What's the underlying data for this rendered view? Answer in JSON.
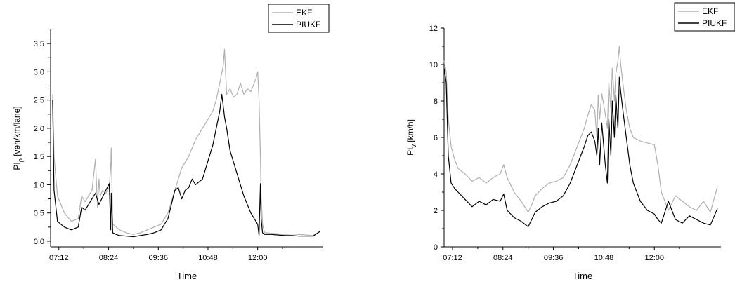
{
  "chart_data": [
    {
      "type": "line",
      "xlabel": "Time",
      "ylabel": "PI",
      "ylabel_sub": "ρ",
      "ylabel_unit": " [veh/km/lane]",
      "x_ticks": [
        "07:12",
        "08:24",
        "09:36",
        "10:48",
        "12:00"
      ],
      "xlim": [
        "07:00",
        "13:35"
      ],
      "ylim": [
        -0.1,
        3.75
      ],
      "y_ticks": [
        "0,0",
        "0,5",
        "1,0",
        "1,5",
        "2,0",
        "2,5",
        "3,0",
        "3,5"
      ],
      "y_tick_values": [
        0,
        0.5,
        1.0,
        1.5,
        2.0,
        2.5,
        3.0,
        3.5
      ],
      "grid": false,
      "legend_position": "top-right",
      "series": [
        {
          "name": "EKF",
          "color": "#b0b0b0",
          "x": [
            "07:03",
            "07:05",
            "07:10",
            "07:20",
            "07:30",
            "07:40",
            "07:45",
            "07:50",
            "08:00",
            "08:05",
            "08:08",
            "08:10",
            "08:12",
            "08:15",
            "08:20",
            "08:25",
            "08:27",
            "08:28",
            "08:30",
            "08:35",
            "08:40",
            "08:50",
            "09:00",
            "09:10",
            "09:20",
            "09:30",
            "09:40",
            "09:50",
            "10:00",
            "10:10",
            "10:20",
            "10:30",
            "10:40",
            "10:45",
            "10:50",
            "10:55",
            "11:00",
            "11:05",
            "11:10",
            "11:12",
            "11:15",
            "11:20",
            "11:25",
            "11:30",
            "11:35",
            "11:40",
            "11:45",
            "11:50",
            "11:55",
            "11:58",
            "12:00",
            "12:02",
            "12:04",
            "12:05",
            "12:07",
            "12:10",
            "12:20",
            "12:30",
            "12:40",
            "12:50",
            "13:00",
            "13:10",
            "13:20",
            "13:30"
          ],
          "y": [
            2.6,
            1.5,
            0.8,
            0.5,
            0.35,
            0.4,
            0.8,
            0.7,
            0.9,
            1.45,
            0.6,
            1.1,
            0.8,
            0.9,
            0.85,
            0.95,
            1.3,
            1.65,
            0.3,
            0.25,
            0.2,
            0.15,
            0.12,
            0.15,
            0.2,
            0.25,
            0.3,
            0.5,
            0.9,
            1.3,
            1.5,
            1.8,
            2.0,
            2.1,
            2.2,
            2.3,
            2.5,
            2.8,
            3.1,
            3.4,
            2.6,
            2.7,
            2.55,
            2.6,
            2.8,
            2.6,
            2.7,
            2.65,
            2.8,
            2.9,
            3.0,
            2.5,
            1.5,
            0.8,
            0.3,
            0.15,
            0.14,
            0.13,
            0.12,
            0.13,
            0.12,
            0.11,
            0.1,
            0.17
          ]
        },
        {
          "name": "PIUKF",
          "color": "#000000",
          "x": [
            "07:03",
            "07:05",
            "07:10",
            "07:20",
            "07:30",
            "07:40",
            "07:45",
            "07:50",
            "08:00",
            "08:05",
            "08:10",
            "08:20",
            "08:25",
            "08:27",
            "08:28",
            "08:30",
            "08:35",
            "08:40",
            "08:50",
            "09:00",
            "09:10",
            "09:20",
            "09:30",
            "09:40",
            "09:50",
            "10:00",
            "10:05",
            "10:10",
            "10:15",
            "10:20",
            "10:25",
            "10:30",
            "10:35",
            "10:40",
            "10:45",
            "10:50",
            "10:55",
            "11:00",
            "11:05",
            "11:08",
            "11:10",
            "11:12",
            "11:15",
            "11:20",
            "11:30",
            "11:40",
            "11:50",
            "12:00",
            "12:02",
            "12:04",
            "12:05",
            "12:07",
            "12:10",
            "12:20",
            "12:30",
            "12:40",
            "12:50",
            "13:00",
            "13:10",
            "13:20",
            "13:30"
          ],
          "y": [
            2.5,
            0.9,
            0.35,
            0.25,
            0.2,
            0.25,
            0.6,
            0.55,
            0.75,
            0.85,
            0.65,
            0.9,
            1.02,
            0.2,
            0.85,
            0.15,
            0.12,
            0.1,
            0.09,
            0.08,
            0.1,
            0.12,
            0.15,
            0.2,
            0.4,
            0.9,
            0.95,
            0.75,
            0.9,
            0.95,
            1.1,
            1.0,
            1.05,
            1.1,
            1.3,
            1.5,
            1.7,
            2.0,
            2.3,
            2.6,
            2.4,
            2.2,
            2.0,
            1.6,
            1.2,
            0.8,
            0.5,
            0.3,
            0.1,
            1.02,
            0.4,
            0.15,
            0.12,
            0.12,
            0.11,
            0.1,
            0.1,
            0.09,
            0.09,
            0.09,
            0.17
          ]
        }
      ]
    },
    {
      "type": "line",
      "xlabel": "Time",
      "ylabel": "PI",
      "ylabel_sub": "v",
      "ylabel_unit": " [km/h]",
      "x_ticks": [
        "07:12",
        "08:24",
        "09:36",
        "10:48",
        "12:00"
      ],
      "xlim": [
        "07:00",
        "13:35"
      ],
      "ylim": [
        0,
        12
      ],
      "y_ticks": [
        "0",
        "2",
        "4",
        "6",
        "8",
        "10",
        "12"
      ],
      "y_tick_values": [
        0,
        2,
        4,
        6,
        8,
        10,
        12
      ],
      "grid": false,
      "legend_position": "top-right",
      "series": [
        {
          "name": "EKF",
          "color": "#b0b0b0",
          "x": [
            "07:00",
            "07:03",
            "07:06",
            "07:10",
            "07:15",
            "07:20",
            "07:30",
            "07:40",
            "07:50",
            "08:00",
            "08:10",
            "08:20",
            "08:25",
            "08:30",
            "08:40",
            "08:50",
            "09:00",
            "09:05",
            "09:10",
            "09:20",
            "09:30",
            "09:40",
            "09:50",
            "10:00",
            "10:10",
            "10:20",
            "10:25",
            "10:30",
            "10:35",
            "10:38",
            "10:40",
            "10:42",
            "10:45",
            "10:50",
            "10:53",
            "10:55",
            "10:58",
            "11:00",
            "11:03",
            "11:05",
            "11:08",
            "11:10",
            "11:12",
            "11:15",
            "11:20",
            "11:25",
            "11:30",
            "11:40",
            "11:50",
            "12:00",
            "12:05",
            "12:10",
            "12:20",
            "12:30",
            "12:40",
            "12:50",
            "13:00",
            "13:10",
            "13:20",
            "13:30"
          ],
          "y": [
            10.2,
            9.6,
            7.0,
            5.5,
            4.8,
            4.3,
            4.0,
            3.6,
            3.8,
            3.5,
            3.8,
            4.0,
            4.5,
            3.8,
            3.0,
            2.5,
            1.9,
            2.3,
            2.8,
            3.2,
            3.5,
            3.6,
            3.8,
            4.5,
            5.5,
            6.5,
            7.2,
            7.8,
            7.5,
            6.0,
            8.3,
            7.0,
            8.4,
            7.3,
            6.5,
            9.0,
            7.5,
            9.8,
            8.0,
            9.5,
            10.2,
            11.0,
            10.0,
            9.0,
            7.5,
            6.5,
            6.0,
            5.8,
            5.7,
            5.6,
            4.5,
            3.0,
            2.0,
            2.8,
            2.5,
            2.2,
            2.0,
            2.5,
            1.9,
            3.3
          ]
        },
        {
          "name": "PIUKF",
          "color": "#000000",
          "x": [
            "07:00",
            "07:03",
            "07:06",
            "07:10",
            "07:15",
            "07:20",
            "07:30",
            "07:40",
            "07:50",
            "08:00",
            "08:10",
            "08:20",
            "08:25",
            "08:30",
            "08:40",
            "08:50",
            "09:00",
            "09:05",
            "09:10",
            "09:20",
            "09:30",
            "09:40",
            "09:50",
            "10:00",
            "10:10",
            "10:20",
            "10:25",
            "10:30",
            "10:35",
            "10:38",
            "10:40",
            "10:42",
            "10:45",
            "10:50",
            "10:53",
            "10:55",
            "10:58",
            "11:00",
            "11:03",
            "11:05",
            "11:08",
            "11:10",
            "11:12",
            "11:15",
            "11:20",
            "11:25",
            "11:30",
            "11:40",
            "11:50",
            "12:00",
            "12:05",
            "12:10",
            "12:20",
            "12:30",
            "12:40",
            "12:50",
            "13:00",
            "13:10",
            "13:20",
            "13:30"
          ],
          "y": [
            9.8,
            9.0,
            5.0,
            3.5,
            3.2,
            3.0,
            2.6,
            2.2,
            2.5,
            2.3,
            2.6,
            2.5,
            2.9,
            2.0,
            1.6,
            1.4,
            1.1,
            1.5,
            1.9,
            2.2,
            2.4,
            2.5,
            2.8,
            3.5,
            4.5,
            5.5,
            6.1,
            6.3,
            5.8,
            5.0,
            6.5,
            4.5,
            6.8,
            4.5,
            3.5,
            7.0,
            5.0,
            8.0,
            6.0,
            8.3,
            6.5,
            9.3,
            8.5,
            7.5,
            6.0,
            4.5,
            3.5,
            2.5,
            2.0,
            1.8,
            1.5,
            1.3,
            2.5,
            1.5,
            1.3,
            1.7,
            1.5,
            1.3,
            1.2,
            2.1
          ]
        }
      ]
    }
  ]
}
